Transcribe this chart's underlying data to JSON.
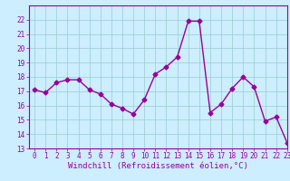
{
  "x": [
    0,
    1,
    2,
    3,
    4,
    5,
    6,
    7,
    8,
    9,
    10,
    11,
    12,
    13,
    14,
    15,
    16,
    17,
    18,
    19,
    20,
    21,
    22,
    23
  ],
  "y": [
    17.1,
    16.9,
    17.6,
    17.8,
    17.8,
    17.1,
    16.8,
    16.1,
    15.8,
    15.4,
    16.4,
    18.2,
    18.7,
    19.4,
    21.9,
    21.9,
    15.5,
    16.1,
    17.2,
    18.0,
    17.3,
    14.9,
    15.2,
    13.4
  ],
  "color": "#990099",
  "bg_color": "#cceeff",
  "grid_color": "#99cccc",
  "xlabel": "Windchill (Refroidissement éolien,°C)",
  "ylim": [
    13,
    23
  ],
  "xlim": [
    -0.5,
    23
  ],
  "yticks": [
    13,
    14,
    15,
    16,
    17,
    18,
    19,
    20,
    21,
    22
  ],
  "xticks": [
    0,
    1,
    2,
    3,
    4,
    5,
    6,
    7,
    8,
    9,
    10,
    11,
    12,
    13,
    14,
    15,
    16,
    17,
    18,
    19,
    20,
    21,
    22,
    23
  ],
  "marker": "D",
  "markersize": 2.5,
  "linewidth": 1.0,
  "xlabel_fontsize": 6.5,
  "tick_fontsize": 5.5
}
